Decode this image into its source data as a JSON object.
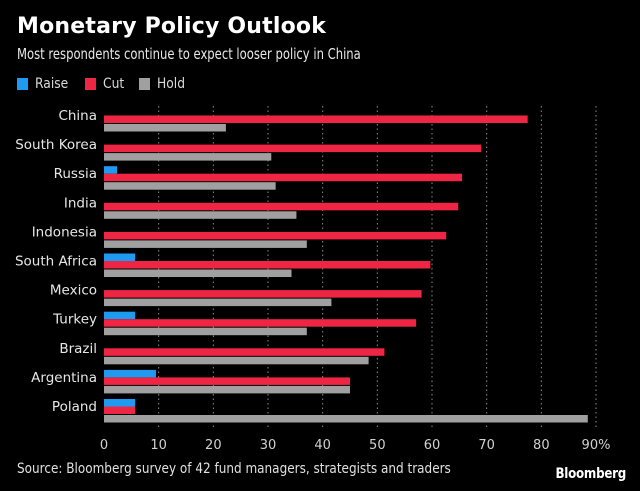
{
  "chart_data": {
    "type": "bar",
    "orientation": "horizontal",
    "title": "Monetary Policy Outlook",
    "subtitle": "Most respondents continue to expect looser policy in China",
    "xlabel": "",
    "ylabel": "",
    "xlim": [
      0,
      90
    ],
    "x_ticks": [
      0,
      10,
      20,
      30,
      40,
      50,
      60,
      70,
      80,
      90
    ],
    "x_tick_labels": [
      "0",
      "10",
      "20",
      "30",
      "40",
      "50",
      "60",
      "70",
      "80",
      "90%"
    ],
    "grid": "vertical dotted",
    "legend_position": "top-left",
    "categories": [
      "China",
      "South Korea",
      "Russia",
      "India",
      "Indonesia",
      "South Africa",
      "Mexico",
      "Turkey",
      "Brazil",
      "Argentina",
      "Poland"
    ],
    "series": [
      {
        "name": "Raise",
        "color": "#1e9bf0",
        "values": [
          0,
          0,
          2.4,
          0,
          0,
          5.7,
          0,
          5.7,
          0,
          9.5,
          5.7
        ]
      },
      {
        "name": "Cut",
        "color": "#ee2643",
        "values": [
          77.5,
          69.0,
          65.5,
          64.8,
          62.6,
          59.7,
          58.1,
          57.1,
          51.3,
          45.0,
          5.7
        ]
      },
      {
        "name": "Hold",
        "color": "#a0a0a0",
        "values": [
          22.3,
          30.6,
          31.4,
          35.2,
          37.1,
          34.3,
          41.6,
          37.1,
          48.4,
          45.0,
          88.5
        ]
      }
    ]
  },
  "legend": [
    {
      "label": "Raise",
      "color": "#1e9bf0"
    },
    {
      "label": "Cut",
      "color": "#ee2643"
    },
    {
      "label": "Hold",
      "color": "#a0a0a0"
    }
  ],
  "footer": {
    "source": "Source: Bloomberg survey of 42 fund managers, strategists and traders",
    "brand": "Bloomberg"
  }
}
